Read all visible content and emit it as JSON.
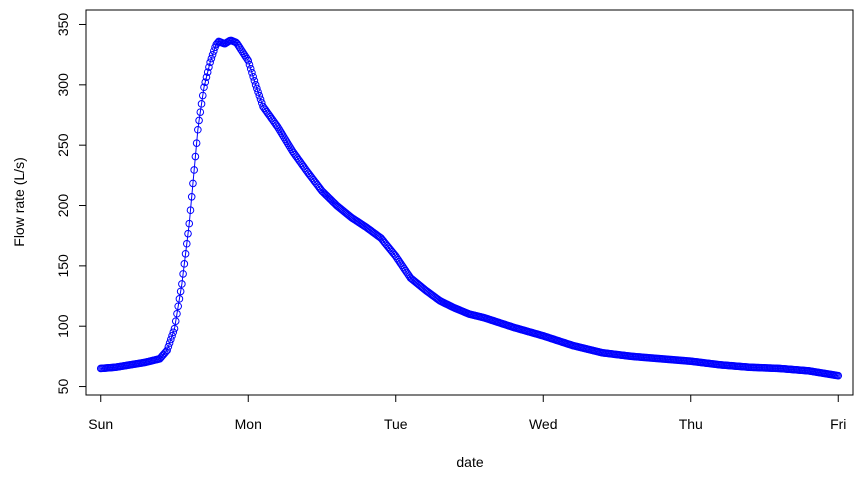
{
  "chart_data": {
    "type": "line",
    "xlabel": "date",
    "ylabel": "Flow rate (L/s)",
    "x_ticks": [
      {
        "day": 0,
        "label": "Sun"
      },
      {
        "day": 1,
        "label": "Mon"
      },
      {
        "day": 2,
        "label": "Tue"
      },
      {
        "day": 3,
        "label": "Wed"
      },
      {
        "day": 4,
        "label": "Thu"
      },
      {
        "day": 5,
        "label": "Fri"
      }
    ],
    "y_ticks": [
      50,
      100,
      150,
      200,
      250,
      300,
      350
    ],
    "xlim": [
      -0.1,
      5.1
    ],
    "ylim": [
      43,
      362
    ],
    "series_color": "#0000ff",
    "marker": "open-circle",
    "anchors": [
      [
        0.0,
        65
      ],
      [
        0.1,
        66
      ],
      [
        0.2,
        68
      ],
      [
        0.3,
        70
      ],
      [
        0.4,
        73
      ],
      [
        0.45,
        80
      ],
      [
        0.5,
        98
      ],
      [
        0.55,
        135
      ],
      [
        0.6,
        185
      ],
      [
        0.63,
        225
      ],
      [
        0.66,
        265
      ],
      [
        0.7,
        298
      ],
      [
        0.74,
        318
      ],
      [
        0.78,
        333
      ],
      [
        0.8,
        336
      ],
      [
        0.84,
        334
      ],
      [
        0.88,
        337
      ],
      [
        0.92,
        335
      ],
      [
        1.0,
        320
      ],
      [
        1.05,
        300
      ],
      [
        1.1,
        282
      ],
      [
        1.2,
        265
      ],
      [
        1.3,
        245
      ],
      [
        1.4,
        228
      ],
      [
        1.5,
        212
      ],
      [
        1.6,
        200
      ],
      [
        1.7,
        190
      ],
      [
        1.8,
        182
      ],
      [
        1.9,
        173
      ],
      [
        2.0,
        158
      ],
      [
        2.1,
        140
      ],
      [
        2.2,
        130
      ],
      [
        2.3,
        121
      ],
      [
        2.4,
        115
      ],
      [
        2.5,
        110
      ],
      [
        2.6,
        107
      ],
      [
        2.7,
        103
      ],
      [
        2.8,
        99
      ],
      [
        3.0,
        92
      ],
      [
        3.2,
        84
      ],
      [
        3.4,
        78
      ],
      [
        3.6,
        75
      ],
      [
        3.8,
        73
      ],
      [
        4.0,
        71
      ],
      [
        4.2,
        68
      ],
      [
        4.4,
        66
      ],
      [
        4.6,
        65
      ],
      [
        4.8,
        63
      ],
      [
        5.0,
        59
      ]
    ]
  }
}
